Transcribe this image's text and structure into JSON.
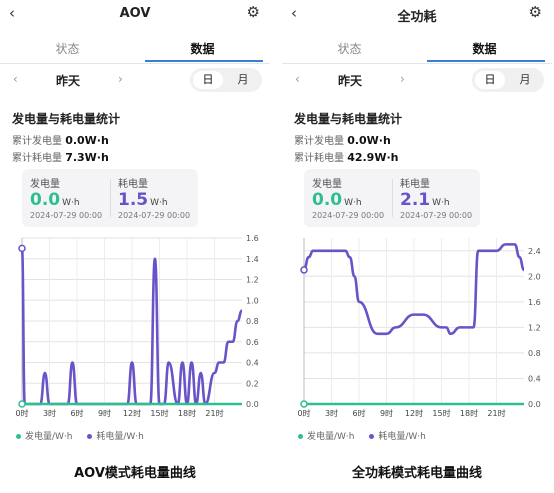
{
  "panels": [
    {
      "back_glyph": "‹",
      "title": "AOV",
      "gear_glyph": "⚙",
      "tabs": [
        "状态",
        "数据"
      ],
      "date_prev": "‹",
      "date_label": "昨天",
      "date_next": "›",
      "segment": [
        "日",
        "月"
      ],
      "section_title": "发电量与耗电量统计",
      "gen_total_label": "累计发电量",
      "gen_total_value": "0.0W·h",
      "cons_total_label": "累计耗电量",
      "cons_total_value": "7.3W·h",
      "card": {
        "gen_label": "发电量",
        "gen_value": "0.0",
        "gen_unit": "W·h",
        "gen_time": "2024-07-29 00:00",
        "cons_label": "耗电量",
        "cons_value": "1.5",
        "cons_unit": "W·h",
        "cons_time": "2024-07-29 00:00"
      },
      "legend_gen": "发电量/W·h",
      "legend_cons": "耗电量/W·h",
      "caption": "AOV模式耗电量曲线"
    },
    {
      "back_glyph": "‹",
      "title": "全功耗",
      "gear_glyph": "⚙",
      "tabs": [
        "状态",
        "数据"
      ],
      "date_prev": "‹",
      "date_label": "昨天",
      "date_next": "›",
      "segment": [
        "日",
        "月"
      ],
      "section_title": "发电量与耗电量统计",
      "gen_total_label": "累计发电量",
      "gen_total_value": "0.0W·h",
      "cons_total_label": "累计耗电量",
      "cons_total_value": "42.9W·h",
      "card": {
        "gen_label": "发电量",
        "gen_value": "0.0",
        "gen_unit": "W·h",
        "gen_time": "2024-07-29 00:00",
        "cons_label": "耗电量",
        "cons_value": "2.1",
        "cons_unit": "W·h",
        "cons_time": "2024-07-29 00:00"
      },
      "legend_gen": "发电量/W·h",
      "legend_cons": "耗电量/W·h",
      "caption": "全功耗模式耗电量曲线"
    }
  ],
  "colors": {
    "generation": "#2fbf8f",
    "consumption": "#6a52c9",
    "tab_accent": "#3a7dd6"
  },
  "chart_data": [
    {
      "type": "line",
      "x": [
        0,
        0.3,
        1,
        2,
        2.5,
        3,
        3.5,
        4,
        5,
        5.5,
        6,
        7,
        8,
        9,
        10,
        11,
        11.5,
        12,
        12.5,
        13,
        14,
        14.5,
        15,
        15.5,
        16,
        17,
        17.5,
        18,
        18.5,
        19,
        19.5,
        20,
        21,
        21.5,
        22,
        22.5,
        23,
        23.5,
        24
      ],
      "x_tick_labels": [
        "0时",
        "3时",
        "6时",
        "9时",
        "12时",
        "15时",
        "18时",
        "21时"
      ],
      "x_tick_positions": [
        0,
        3,
        6,
        9,
        12,
        15,
        18,
        21
      ],
      "xlim": [
        0,
        24
      ],
      "y_ticks": [
        "0.0",
        "0.2",
        "0.4",
        "0.6",
        "0.8",
        "1.0",
        "1.2",
        "1.4",
        "1.6"
      ],
      "ylim": [
        0,
        1.6
      ],
      "series": [
        {
          "name": "耗电量/W·h",
          "values": [
            1.5,
            0,
            0,
            0,
            0.3,
            0,
            0,
            0,
            0,
            0.4,
            0,
            0,
            0,
            0,
            0,
            0,
            0,
            0.4,
            0,
            0,
            0,
            1.4,
            0,
            0,
            0.4,
            0,
            0.4,
            0,
            0.4,
            0,
            0.3,
            0,
            0.3,
            0.4,
            0.4,
            0.6,
            0.6,
            0.8,
            0.9
          ]
        },
        {
          "name": "发电量/W·h",
          "values": [
            0,
            0,
            0,
            0,
            0,
            0,
            0,
            0,
            0,
            0,
            0,
            0,
            0,
            0,
            0,
            0,
            0,
            0,
            0,
            0,
            0,
            0,
            0,
            0,
            0,
            0,
            0,
            0,
            0,
            0,
            0,
            0,
            0,
            0,
            0,
            0,
            0,
            0,
            0
          ]
        }
      ]
    },
    {
      "type": "line",
      "x": [
        0,
        0.5,
        1,
        4,
        4.5,
        5,
        5.5,
        6,
        8,
        9,
        10,
        12,
        13,
        15,
        15.5,
        16,
        17,
        17.5,
        18,
        18.5,
        19,
        21,
        22,
        23,
        23.5,
        24
      ],
      "x_tick_labels": [
        "0时",
        "3时",
        "6时",
        "9时",
        "12时",
        "15时",
        "18时",
        "21时"
      ],
      "x_tick_positions": [
        0,
        3,
        6,
        9,
        12,
        15,
        18,
        21
      ],
      "xlim": [
        0,
        24
      ],
      "y_ticks": [
        "0.0",
        "0.4",
        "0.8",
        "1.2",
        "1.6",
        "2.0",
        "2.4"
      ],
      "ylim": [
        0,
        2.6
      ],
      "series": [
        {
          "name": "耗电量/W·h",
          "values": [
            2.1,
            2.3,
            2.4,
            2.4,
            2.4,
            2.3,
            2.0,
            1.6,
            1.1,
            1.1,
            1.2,
            1.4,
            1.4,
            1.2,
            1.2,
            1.1,
            1.2,
            1.2,
            1.2,
            1.2,
            2.4,
            2.4,
            2.5,
            2.5,
            2.3,
            2.1
          ]
        },
        {
          "name": "发电量/W·h",
          "values": [
            0,
            0,
            0,
            0,
            0,
            0,
            0,
            0,
            0,
            0,
            0,
            0,
            0,
            0,
            0,
            0,
            0,
            0,
            0,
            0,
            0,
            0,
            0,
            0,
            0,
            0
          ]
        }
      ]
    }
  ]
}
